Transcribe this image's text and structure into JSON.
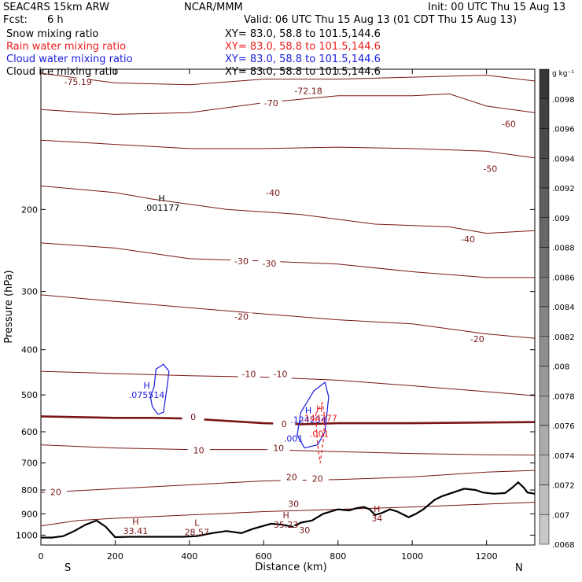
{
  "header": {
    "model": "SEAC4RS 15km ARW",
    "source": "NCAR/MMM",
    "init": "Init: 00 UTC Thu 15 Aug 13",
    "fcst_label": "Fcst:",
    "fcst_value": "6 h",
    "valid": "Valid: 06 UTC Thu 15 Aug 13 (01 CDT Thu 15 Aug 13)"
  },
  "legend": [
    {
      "name": "Snow mixing ratio",
      "color": "#000000",
      "xy": "XY=  83.0, 58.8 to 101.5,144.6"
    },
    {
      "name": "Rain water mixing ratio",
      "color": "#ee2020",
      "xy": "XY=  83.0, 58.8 to 101.5,144.6"
    },
    {
      "name": "Cloud water mixing ratio",
      "color": "#1a1adc",
      "xy": "XY=  83.0, 58.8 to 101.5,144.6"
    },
    {
      "name": "Cloud ice mixing ratio",
      "color": "#000000",
      "xy": "XY=  83.0, 58.8 to 101.5,144.6"
    }
  ],
  "colors": {
    "temperature": "#7a1515",
    "zero_line": "#7a1515",
    "terrain": "#000000",
    "rain": "#ee2020",
    "cloud": "#1a1adc"
  },
  "chart_data": {
    "type": "line",
    "xlabel": "Distance (km)",
    "ylabel": "Pressure (hPa)",
    "xlim": [
      0,
      1330
    ],
    "ylim": [
      1050,
      100
    ],
    "y_scale": "log",
    "x_ticks": [
      0,
      200,
      400,
      600,
      800,
      1000,
      1200
    ],
    "y_ticks": [
      200,
      300,
      400,
      500,
      600,
      700,
      800,
      900,
      1000
    ],
    "end_labels": {
      "left": "S",
      "right": "N"
    },
    "grid": false,
    "temperature_contours": [
      {
        "level": -70,
        "points": [
          [
            0,
            102
          ],
          [
            200,
            107
          ],
          [
            400,
            108
          ],
          [
            600,
            105
          ],
          [
            800,
            105
          ],
          [
            1000,
            104
          ],
          [
            1200,
            103
          ],
          [
            1330,
            106
          ]
        ]
      },
      {
        "level": -60,
        "points": [
          [
            0,
            122
          ],
          [
            200,
            125
          ],
          [
            400,
            124
          ],
          [
            600,
            118
          ],
          [
            800,
            114
          ],
          [
            1000,
            114
          ],
          [
            1100,
            113
          ],
          [
            1200,
            120
          ],
          [
            1330,
            124
          ]
        ]
      },
      {
        "level": -50,
        "points": [
          [
            0,
            142
          ],
          [
            200,
            145
          ],
          [
            400,
            148
          ],
          [
            600,
            148
          ],
          [
            800,
            147
          ],
          [
            1000,
            148
          ],
          [
            1200,
            150
          ],
          [
            1330,
            155
          ]
        ]
      },
      {
        "level": -40,
        "points": [
          [
            0,
            178
          ],
          [
            200,
            184
          ],
          [
            300,
            190
          ],
          [
            500,
            200
          ],
          [
            700,
            205
          ],
          [
            900,
            215
          ],
          [
            1100,
            218
          ],
          [
            1200,
            225
          ],
          [
            1330,
            222
          ]
        ]
      },
      {
        "level": -30,
        "points": [
          [
            0,
            236
          ],
          [
            200,
            242
          ],
          [
            400,
            255
          ],
          [
            600,
            258
          ],
          [
            800,
            262
          ],
          [
            1000,
            272
          ],
          [
            1200,
            280
          ],
          [
            1330,
            280
          ]
        ]
      },
      {
        "level": -20,
        "points": [
          [
            0,
            305
          ],
          [
            200,
            315
          ],
          [
            400,
            325
          ],
          [
            600,
            335
          ],
          [
            800,
            345
          ],
          [
            1000,
            352
          ],
          [
            1200,
            370
          ],
          [
            1330,
            378
          ]
        ]
      },
      {
        "level": -10,
        "points": [
          [
            0,
            445
          ],
          [
            200,
            450
          ],
          [
            400,
            455
          ],
          [
            600,
            458
          ],
          [
            800,
            465
          ],
          [
            1000,
            478
          ],
          [
            1200,
            492
          ],
          [
            1330,
            502
          ]
        ]
      },
      {
        "level": 0,
        "points": [
          [
            0,
            556
          ],
          [
            200,
            560
          ],
          [
            300,
            560
          ],
          [
            400,
            562
          ],
          [
            600,
            575
          ],
          [
            700,
            578
          ],
          [
            800,
            575
          ],
          [
            1000,
            575
          ],
          [
            1200,
            573
          ],
          [
            1330,
            572
          ]
        ]
      },
      {
        "level": 10,
        "points": [
          [
            0,
            640
          ],
          [
            200,
            650
          ],
          [
            400,
            655
          ],
          [
            600,
            655
          ],
          [
            800,
            662
          ],
          [
            1000,
            668
          ],
          [
            1200,
            672
          ],
          [
            1330,
            673
          ]
        ]
      },
      {
        "level": 20,
        "points": [
          [
            0,
            810
          ],
          [
            200,
            795
          ],
          [
            400,
            780
          ],
          [
            600,
            765
          ],
          [
            800,
            760
          ],
          [
            1000,
            750
          ],
          [
            1200,
            732
          ],
          [
            1330,
            726
          ]
        ]
      },
      {
        "level": 30,
        "points": [
          [
            0,
            955
          ],
          [
            100,
            930
          ],
          [
            200,
            920
          ],
          [
            400,
            905
          ],
          [
            600,
            890
          ],
          [
            800,
            880
          ],
          [
            1000,
            870
          ],
          [
            1330,
            850
          ]
        ]
      }
    ],
    "temperature_labels": [
      {
        "text": "-75.19",
        "x": 100,
        "y": 108
      },
      {
        "text": "-72.18",
        "x": 720,
        "y": 113
      },
      {
        "text": "-70",
        "x": 620,
        "y": 120
      },
      {
        "text": "-60",
        "x": 1260,
        "y": 133
      },
      {
        "text": "-50",
        "x": 1210,
        "y": 166
      },
      {
        "text": "-40",
        "x": 625,
        "y": 187
      },
      {
        "text": "-40",
        "x": 1150,
        "y": 235
      },
      {
        "text": "-30",
        "x": 540,
        "y": 262
      },
      {
        "text": "-30",
        "x": 615,
        "y": 265
      },
      {
        "text": "-20",
        "x": 540,
        "y": 345
      },
      {
        "text": "-20",
        "x": 1175,
        "y": 385
      },
      {
        "text": "-10",
        "x": 560,
        "y": 458
      },
      {
        "text": "-10",
        "x": 645,
        "y": 458
      },
      {
        "text": "0",
        "x": 410,
        "y": 566
      },
      {
        "text": "0",
        "x": 655,
        "y": 586
      },
      {
        "text": "10",
        "x": 425,
        "y": 668
      },
      {
        "text": "10",
        "x": 640,
        "y": 660
      },
      {
        "text": "20",
        "x": 675,
        "y": 762
      },
      {
        "text": "20",
        "x": 745,
        "y": 768
      },
      {
        "text": "20",
        "x": 40,
        "y": 820
      },
      {
        "text": "30",
        "x": 680,
        "y": 870
      },
      {
        "text": "30",
        "x": 710,
        "y": 990
      }
    ],
    "extrema": [
      {
        "type": "H",
        "value": ".001177",
        "x": 325,
        "y": 198,
        "color": "#000000"
      },
      {
        "type": "H",
        "value": ".075514",
        "x": 285,
        "y": 500,
        "color": "#1a1adc"
      },
      {
        "type": "H",
        "value": ".124234",
        "x": 720,
        "y": 565,
        "color": "#1a1adc"
      },
      {
        "type": "H",
        "value": ".144277",
        "x": 750,
        "y": 560,
        "color": "#ee2020"
      },
      {
        "type": "H",
        "value": "33.41",
        "x": 255,
        "y": 980,
        "color": "#7a1515"
      },
      {
        "type": "L",
        "value": "28.57",
        "x": 420,
        "y": 985,
        "color": "#7a1515"
      },
      {
        "type": "H",
        "value": "35.23",
        "x": 660,
        "y": 950,
        "color": "#7a1515"
      },
      {
        "type": "H",
        "value": "34",
        "x": 905,
        "y": 920,
        "color": "#7a1515"
      }
    ],
    "rain_labels": [
      {
        "text": ".001",
        "x": 750,
        "y": 615
      }
    ],
    "cloud_labels": [
      {
        "text": ".001",
        "x": 680,
        "y": 630
      }
    ],
    "colorbar": {
      "unit": "g kg⁻¹",
      "labels": [
        ".0098",
        ".0096",
        ".0094",
        ".0092",
        ".009",
        ".0088",
        ".0086",
        ".0084",
        ".0082",
        ".008",
        ".0078",
        ".0076",
        ".0074",
        ".0072",
        ".007",
        ".0068"
      ]
    }
  }
}
